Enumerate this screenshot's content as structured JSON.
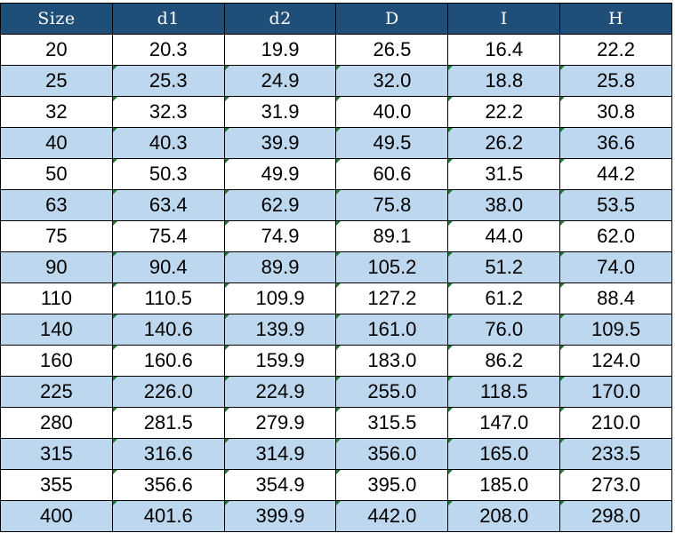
{
  "table": {
    "headers": [
      "Size",
      "d1",
      "d2",
      "D",
      "I",
      "H"
    ],
    "rows": [
      [
        "20",
        "20.3",
        "19.9",
        "26.5",
        "16.4",
        "22.2"
      ],
      [
        "25",
        "25.3",
        "24.9",
        "32.0",
        "18.8",
        "25.8"
      ],
      [
        "32",
        "32.3",
        "31.9",
        "40.0",
        "22.2",
        "30.8"
      ],
      [
        "40",
        "40.3",
        "39.9",
        "49.5",
        "26.2",
        "36.6"
      ],
      [
        "50",
        "50.3",
        "49.9",
        "60.6",
        "31.5",
        "44.2"
      ],
      [
        "63",
        "63.4",
        "62.9",
        "75.8",
        "38.0",
        "53.5"
      ],
      [
        "75",
        "75.4",
        "74.9",
        "89.1",
        "44.0",
        "62.0"
      ],
      [
        "90",
        "90.4",
        "89.9",
        "105.2",
        "51.2",
        "74.0"
      ],
      [
        "110",
        "110.5",
        "109.9",
        "127.2",
        "61.2",
        "88.4"
      ],
      [
        "140",
        "140.6",
        "139.9",
        "161.0",
        "76.0",
        "109.5"
      ],
      [
        "160",
        "160.6",
        "159.9",
        "183.0",
        "86.2",
        "124.0"
      ],
      [
        "225",
        "226.0",
        "224.9",
        "255.0",
        "118.5",
        "170.0"
      ],
      [
        "280",
        "281.5",
        "279.9",
        "315.5",
        "147.0",
        "210.0"
      ],
      [
        "315",
        "316.6",
        "314.9",
        "356.0",
        "165.0",
        "233.5"
      ],
      [
        "355",
        "356.6",
        "354.9",
        "395.0",
        "185.0",
        "273.0"
      ],
      [
        "400",
        "401.6",
        "399.9",
        "442.0",
        "208.0",
        "298.0"
      ]
    ]
  },
  "colors": {
    "header_bg": "#1f4e79",
    "header_text": "#ffffff",
    "band_bg": "#bdd7ee",
    "plain_bg": "#ffffff",
    "indicator": "#1e7b34"
  },
  "icons": {
    "cell_indicator": "green-triangle-indicator-icon"
  }
}
